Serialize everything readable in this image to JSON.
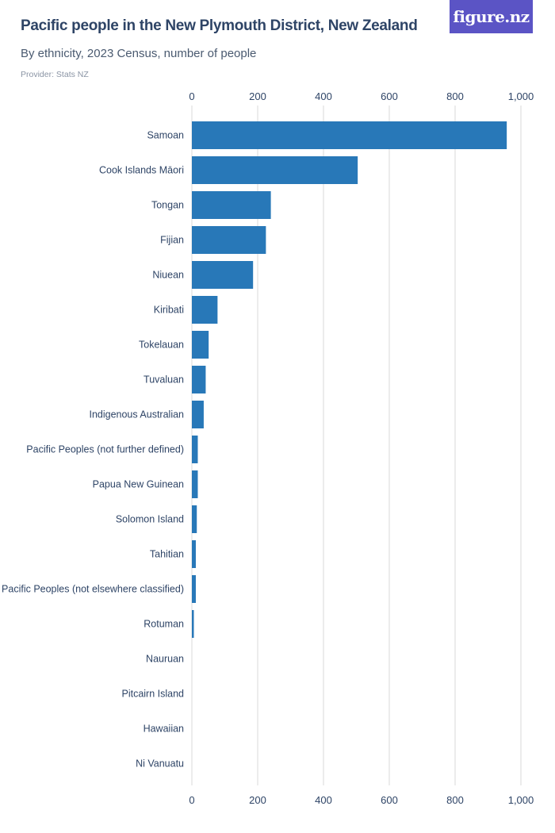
{
  "header": {
    "title": "Pacific people in the New Plymouth District, New Zealand",
    "subtitle": "By ethnicity, 2023 Census, number of people",
    "provider": "Provider: Stats NZ",
    "brand": "figure.nz"
  },
  "colors": {
    "bar": "#2878b8",
    "grid": "#d8d8d8",
    "text": "#2e4466"
  },
  "chart_data": {
    "type": "bar",
    "orientation": "horizontal",
    "title": "Pacific people in the New Plymouth District, New Zealand",
    "xlabel": "",
    "ylabel": "",
    "xlim": [
      0,
      1000
    ],
    "ticks": [
      0,
      200,
      400,
      600,
      800,
      1000
    ],
    "tick_labels": [
      "0",
      "200",
      "400",
      "600",
      "800",
      "1,000"
    ],
    "categories": [
      "Samoan",
      "Cook Islands Māori",
      "Tongan",
      "Fijian",
      "Niuean",
      "Kiribati",
      "Tokelauan",
      "Tuvaluan",
      "Indigenous Australian",
      "Pacific Peoples (not further defined)",
      "Papua New Guinean",
      "Solomon Island",
      "Tahitian",
      "Pacific Peoples (not elsewhere classified)",
      "Rotuman",
      "Nauruan",
      "Pitcairn Island",
      "Hawaiian",
      "Ni Vanuatu"
    ],
    "values": [
      957,
      504,
      240,
      225,
      186,
      78,
      51,
      42,
      36,
      18,
      18,
      15,
      12,
      12,
      6,
      0,
      0,
      0,
      0
    ],
    "grid": true
  }
}
